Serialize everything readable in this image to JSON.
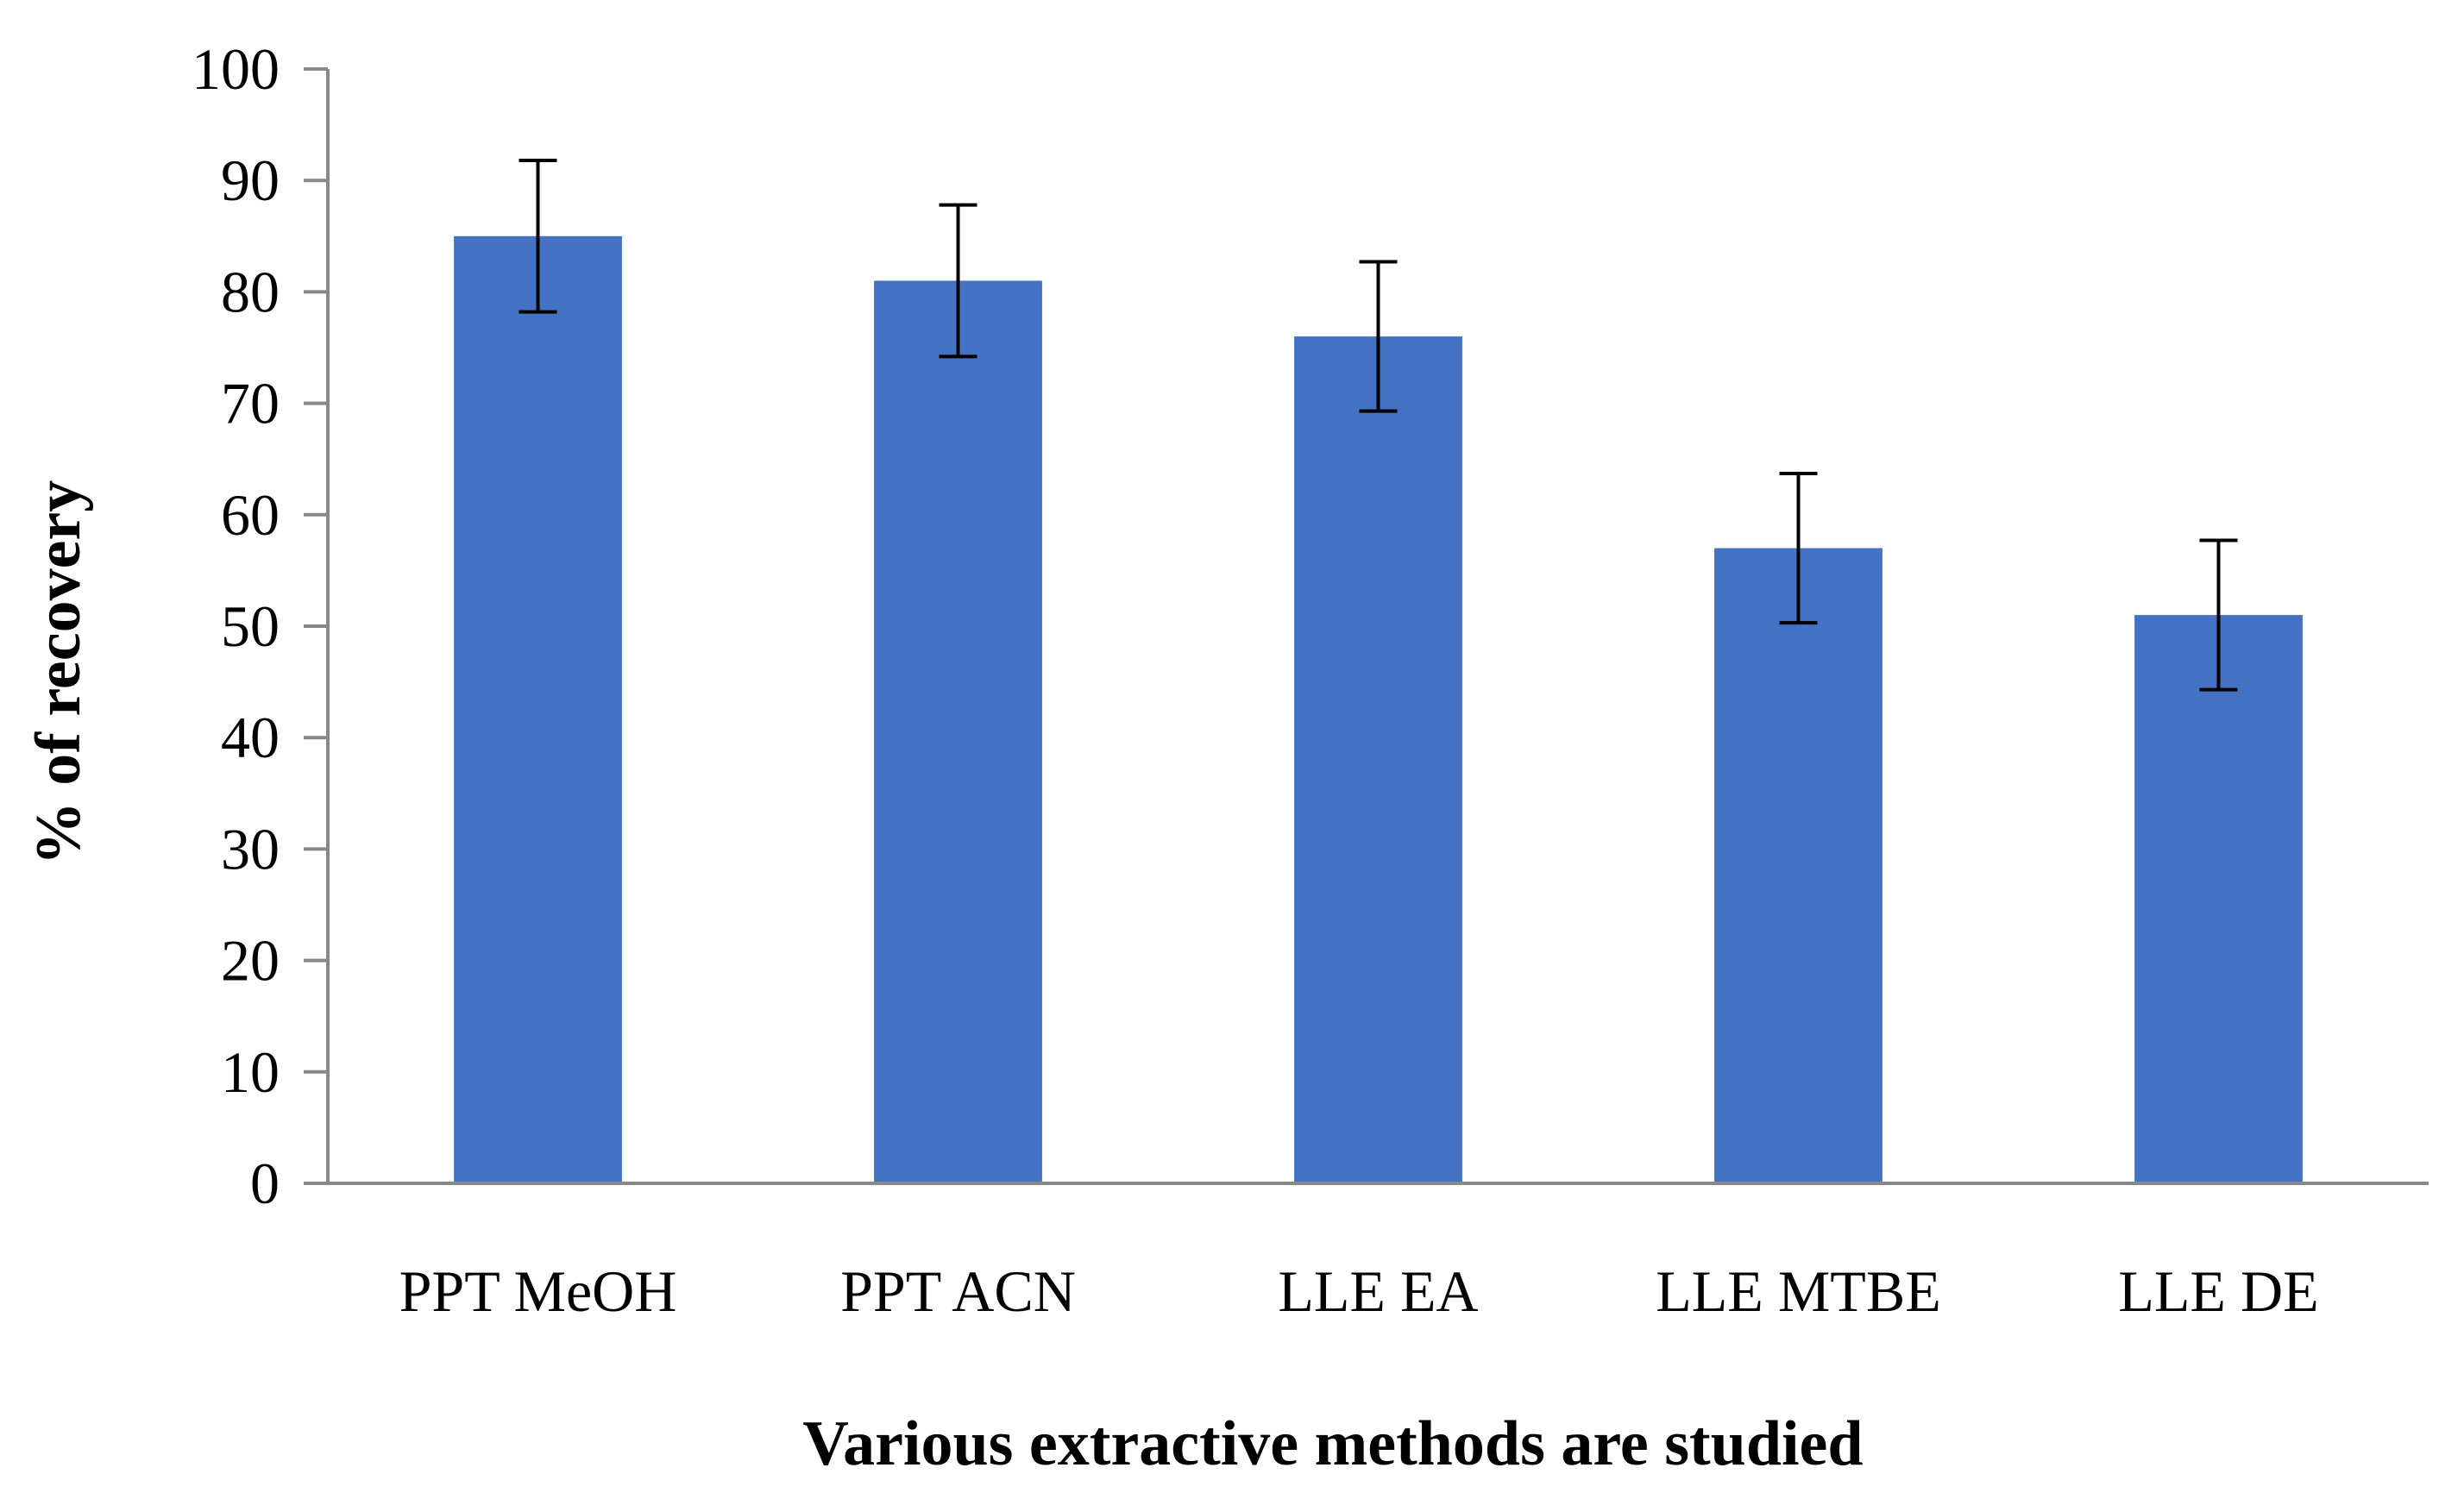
{
  "chart_data": {
    "type": "bar",
    "title": "",
    "xlabel": "Various extractive methods are studied",
    "ylabel": "% of recovery",
    "categories": [
      "PPT MeOH",
      "PPT ACN",
      "LLE EA",
      "LLE MTBE",
      "LLE DE"
    ],
    "values": [
      85,
      81,
      76,
      57,
      51
    ],
    "error": [
      6.8,
      6.8,
      6.7,
      6.7,
      6.7
    ],
    "ylim": [
      0,
      100
    ],
    "yticks": [
      0,
      10,
      20,
      30,
      40,
      50,
      60,
      70,
      80,
      90,
      100
    ],
    "grid": false,
    "legend": "none",
    "bar_color": "#4472C4",
    "axis_color": "#888888",
    "error_bar_color": "#000000"
  }
}
